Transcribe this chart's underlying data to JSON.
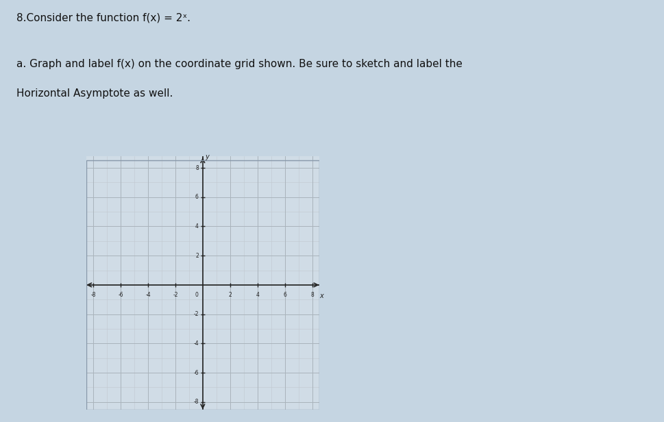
{
  "title_line1": "8.Consider the function f(x) = 2ˣ.",
  "instruction_line1": "a. Graph and label f(x) on the coordinate grid shown. Be sure to sketch and label the",
  "instruction_line2": "Horizontal Asymptote as well.",
  "xmin": -8,
  "xmax": 8,
  "ymin": -8,
  "ymax": 8,
  "xticks": [
    -8,
    -6,
    -4,
    -2,
    2,
    4,
    6,
    8
  ],
  "yticks": [
    -8,
    -6,
    -4,
    -2,
    2,
    4,
    6,
    8
  ],
  "grid_color": "#c0c8d0",
  "grid_major_color": "#aab4bc",
  "axis_color": "#222222",
  "bg_color": "#c8d8e4",
  "text_color": "#111111",
  "title_fontsize": 11,
  "instruction_fontsize": 11
}
